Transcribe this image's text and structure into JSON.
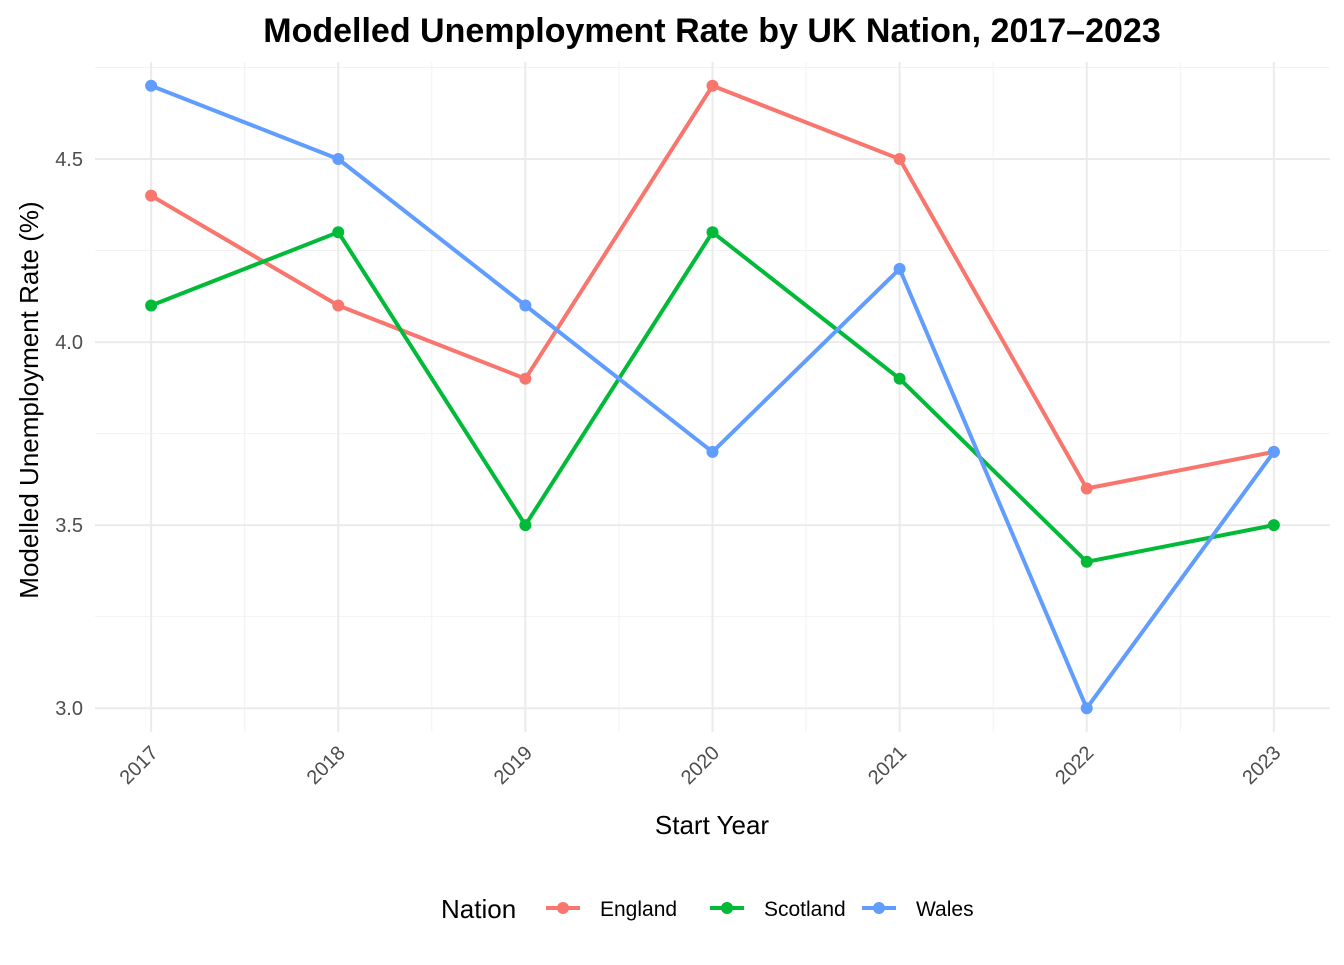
{
  "chart_data": {
    "type": "line",
    "title": "Modelled Unemployment Rate by UK Nation, 2017–2023",
    "xlabel": "Start Year",
    "ylabel": "Modelled Unemployment Rate (%)",
    "x": [
      2017,
      2018,
      2019,
      2020,
      2021,
      2022,
      2023
    ],
    "x_tick_labels": [
      "2017",
      "2018",
      "2019",
      "2020",
      "2021",
      "2022",
      "2023"
    ],
    "y_ticks": [
      3.0,
      3.5,
      4.0,
      4.5
    ],
    "y_tick_labels": [
      "3.0",
      "3.5",
      "4.0",
      "4.5"
    ],
    "ylim": [
      2.935,
      4.765
    ],
    "xlim": [
      2016.7,
      2023.3
    ],
    "grid": true,
    "legend": {
      "title": "Nation",
      "position": "bottom"
    },
    "series": [
      {
        "name": "England",
        "color": "#F8766D",
        "values": [
          4.4,
          4.1,
          3.9,
          4.7,
          4.5,
          3.6,
          3.7
        ]
      },
      {
        "name": "Scotland",
        "color": "#00BA38",
        "values": [
          4.1,
          4.3,
          3.5,
          4.3,
          3.9,
          3.4,
          3.5
        ]
      },
      {
        "name": "Wales",
        "color": "#619CFF",
        "values": [
          4.7,
          4.5,
          4.1,
          3.7,
          4.2,
          3.0,
          3.7
        ]
      }
    ]
  }
}
